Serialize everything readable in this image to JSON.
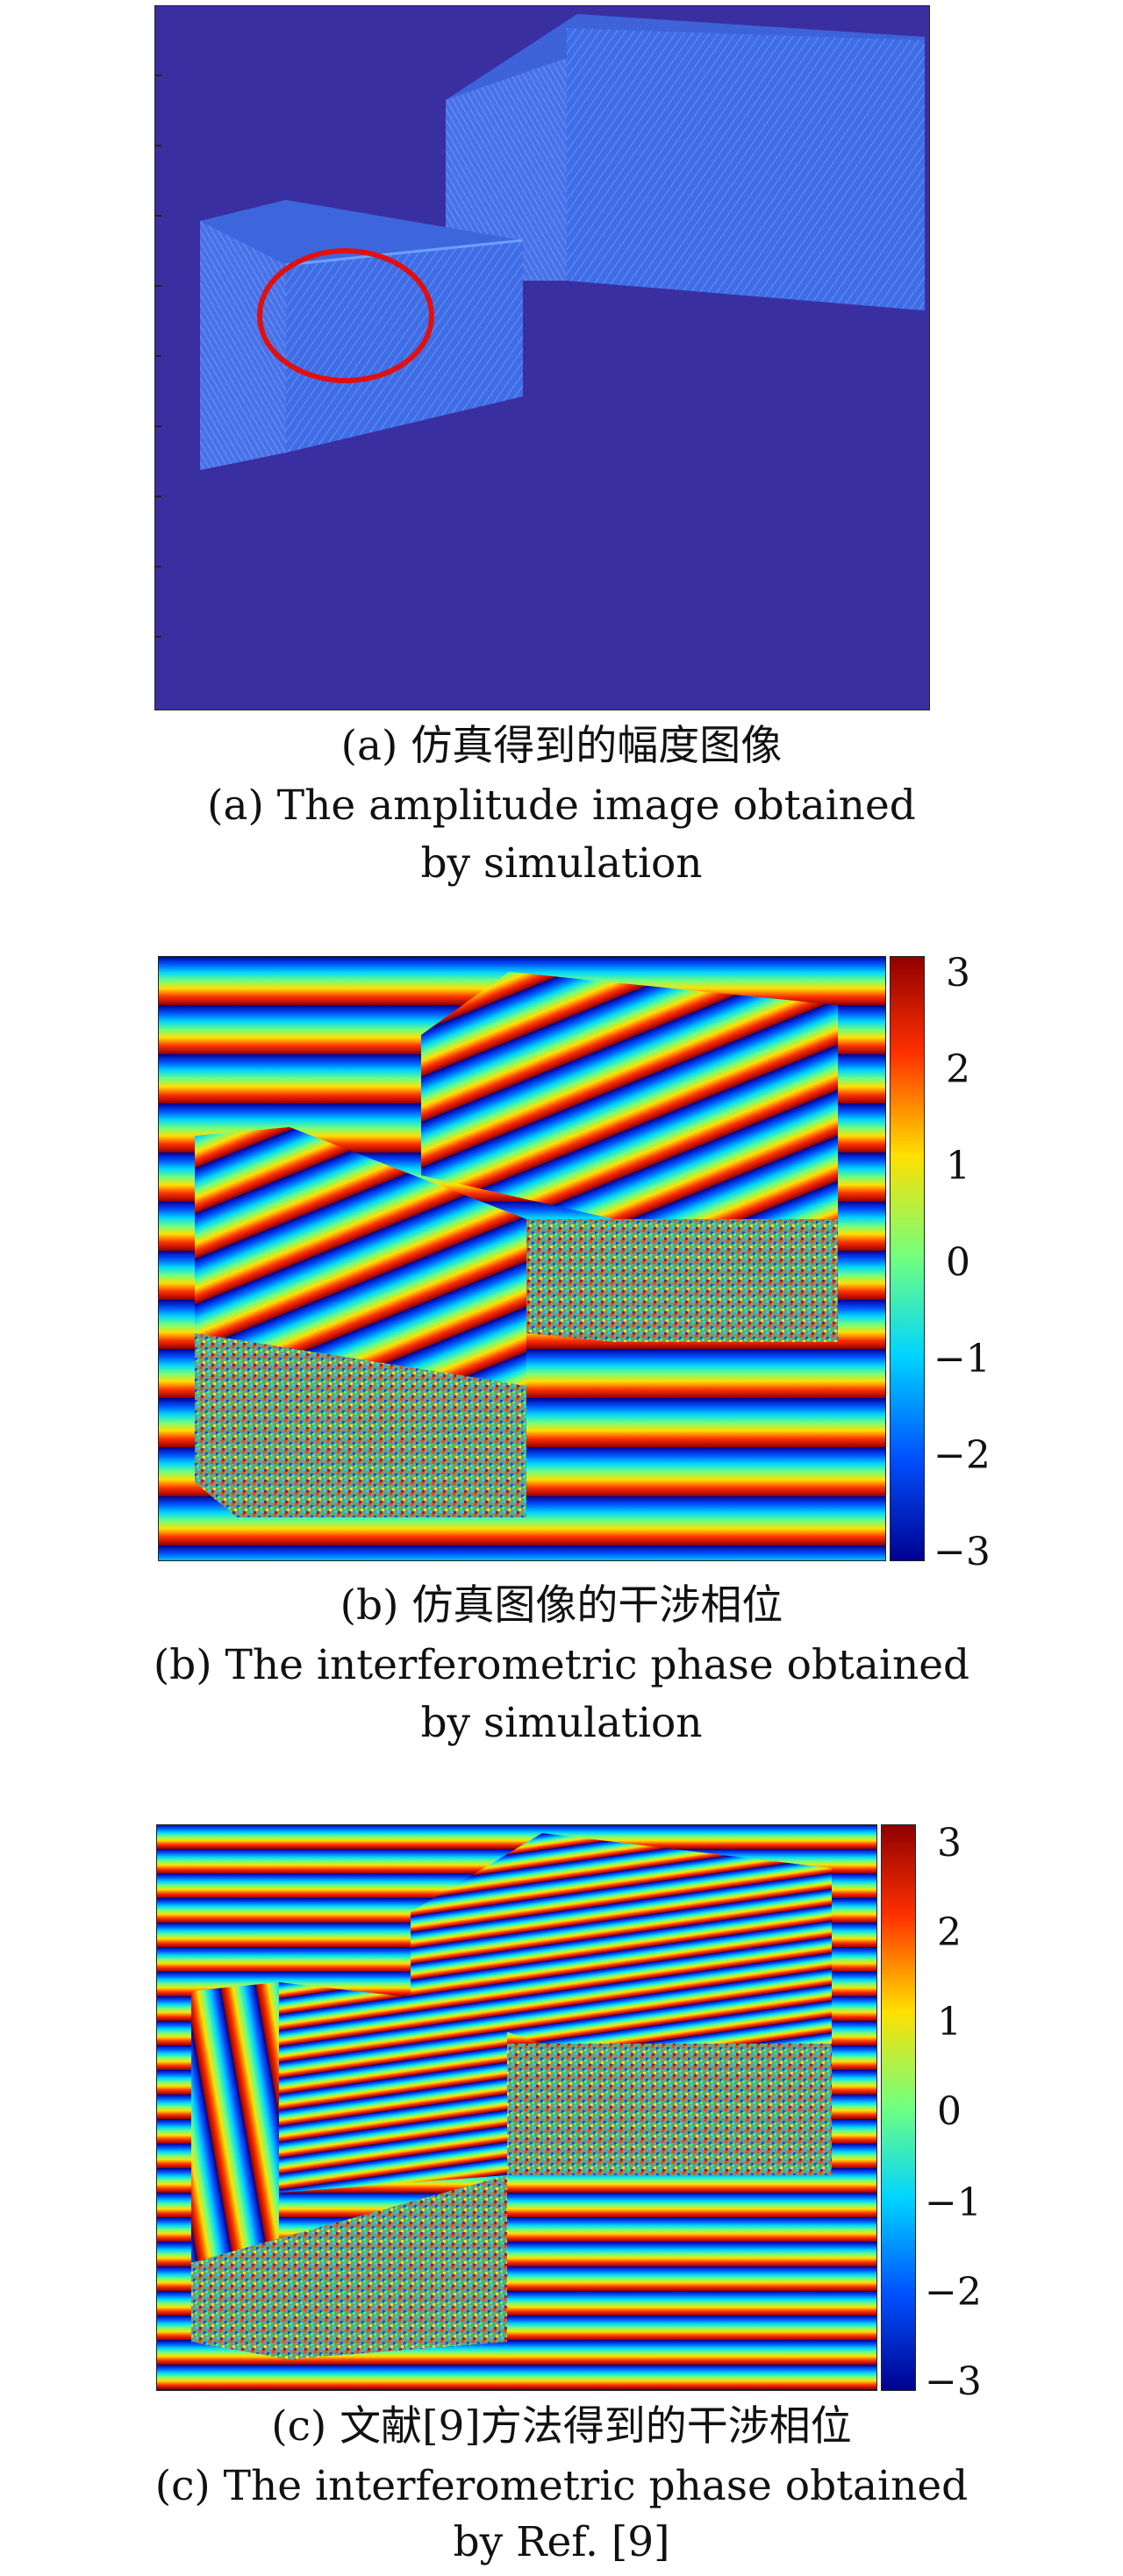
{
  "figure_a": {
    "caption_cn": "(a) 仿真得到的幅度图像",
    "caption_en_line1": "(a) The amplitude image obtained",
    "caption_en_line2": "by simulation"
  },
  "figure_b": {
    "caption_cn": "(b) 仿真图像的干涉相位",
    "caption_en_line1": "(b) The interferometric phase obtained",
    "caption_en_line2": "by simulation",
    "colorbar_ticks": [
      "3",
      "2",
      "1",
      "0",
      "−1",
      "−2",
      "−3"
    ]
  },
  "figure_c": {
    "caption_cn": "(c) 文献[9]方法得到的干涉相位",
    "caption_en_line1": "(c) The interferometric phase obtained",
    "caption_en_line2": "by Ref. [9]",
    "colorbar_ticks": [
      "3",
      "2",
      "1",
      "0",
      "−1",
      "−2",
      "−3"
    ]
  },
  "colors": {
    "amplitude_background": "#3a2fa0",
    "amplitude_structure": "#3f6de6",
    "highlight_circle": "#e01010"
  }
}
